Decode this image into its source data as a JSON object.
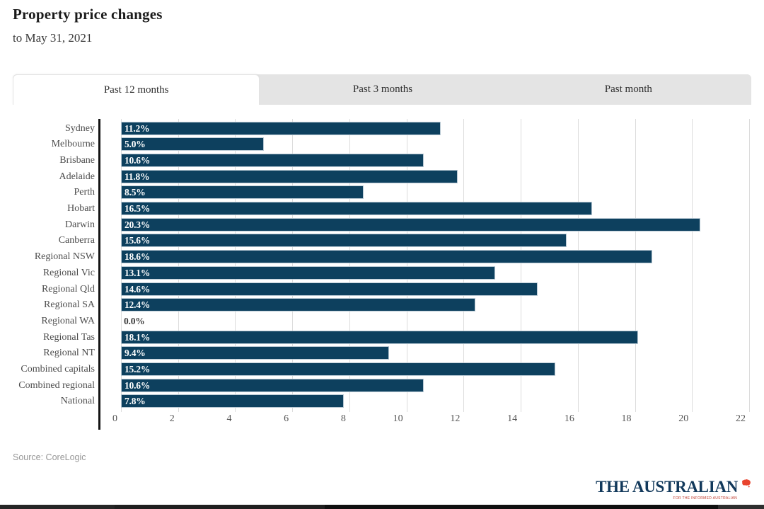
{
  "header": {
    "title": "Property price changes",
    "subtitle": "to May 31, 2021"
  },
  "tabs": [
    {
      "label": "Past 12 months",
      "active": true
    },
    {
      "label": "Past 3 months",
      "active": false
    },
    {
      "label": "Past month",
      "active": false
    }
  ],
  "chart_data": {
    "type": "bar",
    "orientation": "horizontal",
    "title": "Property price changes",
    "subtitle": "to May 31, 2021",
    "categories": [
      "Sydney",
      "Melbourne",
      "Brisbane",
      "Adelaide",
      "Perth",
      "Hobart",
      "Darwin",
      "Canberra",
      "Regional NSW",
      "Regional Vic",
      "Regional Qld",
      "Regional SA",
      "Regional WA",
      "Regional Tas",
      "Regional NT",
      "Combined capitals",
      "Combined regional",
      "National"
    ],
    "values": [
      11.2,
      5.0,
      10.6,
      11.8,
      8.5,
      16.5,
      20.3,
      15.6,
      18.6,
      13.1,
      14.6,
      12.4,
      0.0,
      18.1,
      9.4,
      15.2,
      10.6,
      7.8
    ],
    "value_labels": [
      "11.2%",
      "5.0%",
      "10.6%",
      "11.8%",
      "8.5%",
      "16.5%",
      "20.3%",
      "15.6%",
      "18.6%",
      "13.1%",
      "14.6%",
      "12.4%",
      "0.0%",
      "18.1%",
      "9.4%",
      "15.2%",
      "10.6%",
      "7.8%"
    ],
    "xticks": [
      0,
      2,
      4,
      6,
      8,
      10,
      12,
      14,
      16,
      18,
      20,
      22
    ],
    "xlim": [
      0,
      22
    ],
    "xlabel": "",
    "ylabel": "",
    "grid": "vertical",
    "legend": "none",
    "bar_color": "#0d405e",
    "bar_label_color": "#ffffff"
  },
  "footer": {
    "source": "Source: CoreLogic"
  },
  "logo": {
    "text": "THE AUSTRALIAN",
    "tagline": "FOR THE INFORMED AUSTRALIAN",
    "color": "#12395b",
    "accent": "#e8442e"
  }
}
